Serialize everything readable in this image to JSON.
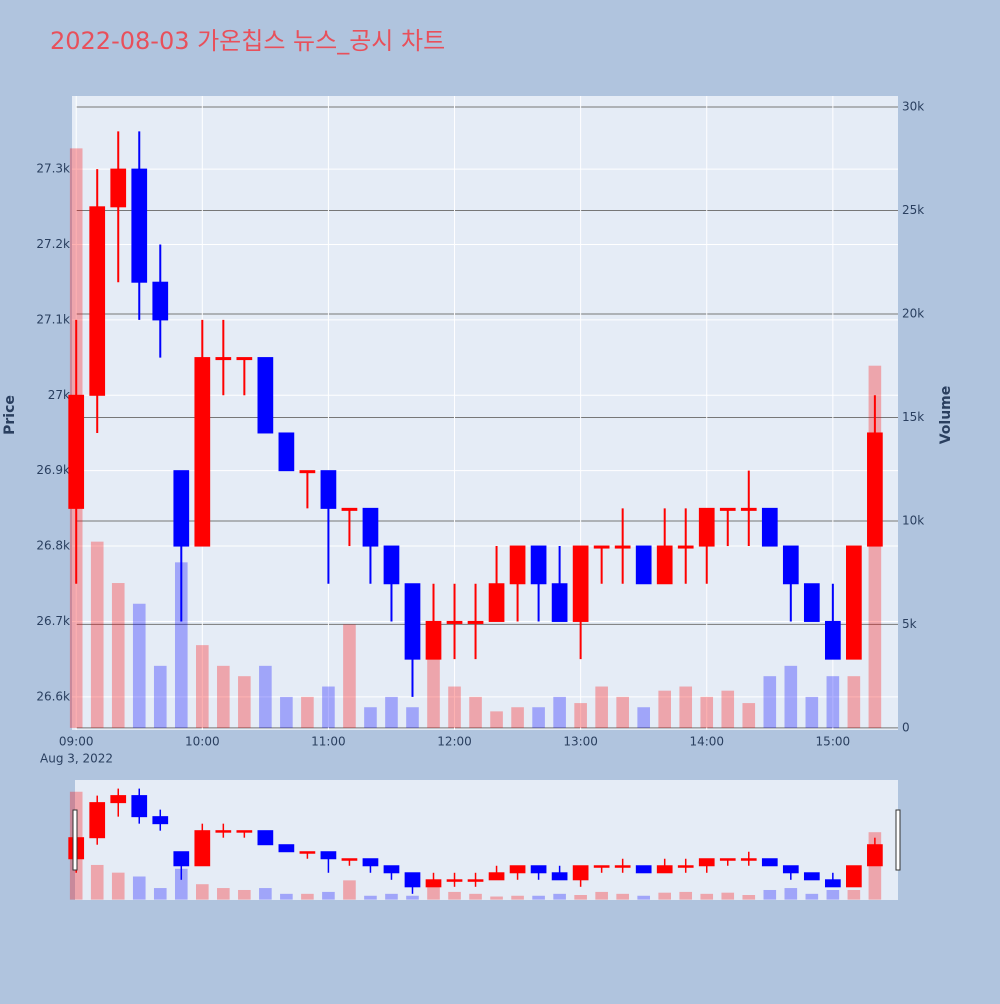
{
  "chart_data": {
    "type": "candlestick",
    "title": "2022-08-03 가온칩스 뉴스_공시 차트",
    "x_date_label": "Aug 3, 2022",
    "y_title": "Price",
    "y2_title": "Volume",
    "increasing_color": "#ff0000",
    "decreasing_color": "#0000ff",
    "x": [
      "09:00",
      "09:10",
      "09:20",
      "09:30",
      "09:40",
      "09:50",
      "10:00",
      "10:10",
      "10:20",
      "10:30",
      "10:40",
      "10:50",
      "11:00",
      "11:10",
      "11:20",
      "11:30",
      "11:40",
      "11:50",
      "12:00",
      "12:10",
      "12:20",
      "12:30",
      "12:40",
      "12:50",
      "13:00",
      "13:10",
      "13:20",
      "13:30",
      "13:40",
      "13:50",
      "14:00",
      "14:10",
      "14:20",
      "14:30",
      "14:40",
      "14:50",
      "15:00",
      "15:10",
      "15:20"
    ],
    "open": [
      26850,
      27000,
      27250,
      27300,
      27150,
      26900,
      26800,
      27050,
      27050,
      27050,
      26950,
      26900,
      26900,
      26850,
      26850,
      26800,
      26750,
      26650,
      26700,
      26700,
      26700,
      26750,
      26800,
      26750,
      26700,
      26800,
      26800,
      26800,
      26750,
      26800,
      26800,
      26850,
      26850,
      26850,
      26800,
      26750,
      26700,
      26650,
      26800
    ],
    "high": [
      27100,
      27300,
      27350,
      27350,
      27200,
      26900,
      27100,
      27100,
      27050,
      27050,
      26950,
      26900,
      26900,
      26850,
      26850,
      26800,
      26750,
      26750,
      26750,
      26750,
      26800,
      26800,
      26800,
      26800,
      26800,
      26800,
      26850,
      26800,
      26850,
      26850,
      26850,
      26850,
      26900,
      26850,
      26800,
      26750,
      26750,
      26800,
      27000
    ],
    "low": [
      26750,
      26950,
      27150,
      27100,
      27050,
      26700,
      26800,
      27000,
      27000,
      26950,
      26900,
      26850,
      26750,
      26800,
      26750,
      26700,
      26600,
      26650,
      26650,
      26650,
      26700,
      26700,
      26700,
      26700,
      26650,
      26750,
      26750,
      26750,
      26750,
      26750,
      26750,
      26800,
      26800,
      26800,
      26700,
      26700,
      26650,
      26650,
      26800
    ],
    "close": [
      27000,
      27250,
      27300,
      27150,
      27100,
      26800,
      27050,
      27050,
      27050,
      26950,
      26900,
      26900,
      26850,
      26850,
      26800,
      26750,
      26650,
      26700,
      26700,
      26700,
      26750,
      26800,
      26750,
      26700,
      26800,
      26800,
      26800,
      26750,
      26800,
      26800,
      26850,
      26850,
      26850,
      26800,
      26750,
      26700,
      26650,
      26800,
      26950
    ],
    "volume": [
      28000,
      9000,
      7000,
      6000,
      3000,
      8000,
      4000,
      3000,
      2500,
      3000,
      1500,
      1500,
      2000,
      5000,
      1000,
      1500,
      1000,
      4000,
      2000,
      1500,
      800,
      1000,
      1000,
      1500,
      1200,
      2000,
      1500,
      1000,
      1800,
      2000,
      1500,
      1800,
      1200,
      2500,
      3000,
      1500,
      2500,
      2500,
      17500
    ],
    "xlim": [
      "08:58",
      "15:31"
    ],
    "xticks": [
      "09:00",
      "10:00",
      "11:00",
      "12:00",
      "13:00",
      "14:00",
      "15:00"
    ],
    "ylim": [
      26556,
      27397
    ],
    "yticks": [
      {
        "value": 26600,
        "label": "26.6k"
      },
      {
        "value": 26700,
        "label": "26.7k"
      },
      {
        "value": 26800,
        "label": "26.8k"
      },
      {
        "value": 26900,
        "label": "26.9k"
      },
      {
        "value": 27000,
        "label": "27k"
      },
      {
        "value": 27100,
        "label": "27.1k"
      },
      {
        "value": 27200,
        "label": "27.2k"
      },
      {
        "value": 27300,
        "label": "27.3k"
      }
    ],
    "y2lim": [
      -100,
      30530
    ],
    "y2ticks": [
      0,
      {
        "value": 5000,
        "label": "5k"
      },
      {
        "value": 10000,
        "label": "10k"
      },
      {
        "value": 15000,
        "label": "15k"
      },
      {
        "value": 20000,
        "label": "20k"
      },
      {
        "value": 25000,
        "label": "25k"
      },
      {
        "value": 30000,
        "label": "30k"
      }
    ],
    "grid": true
  }
}
